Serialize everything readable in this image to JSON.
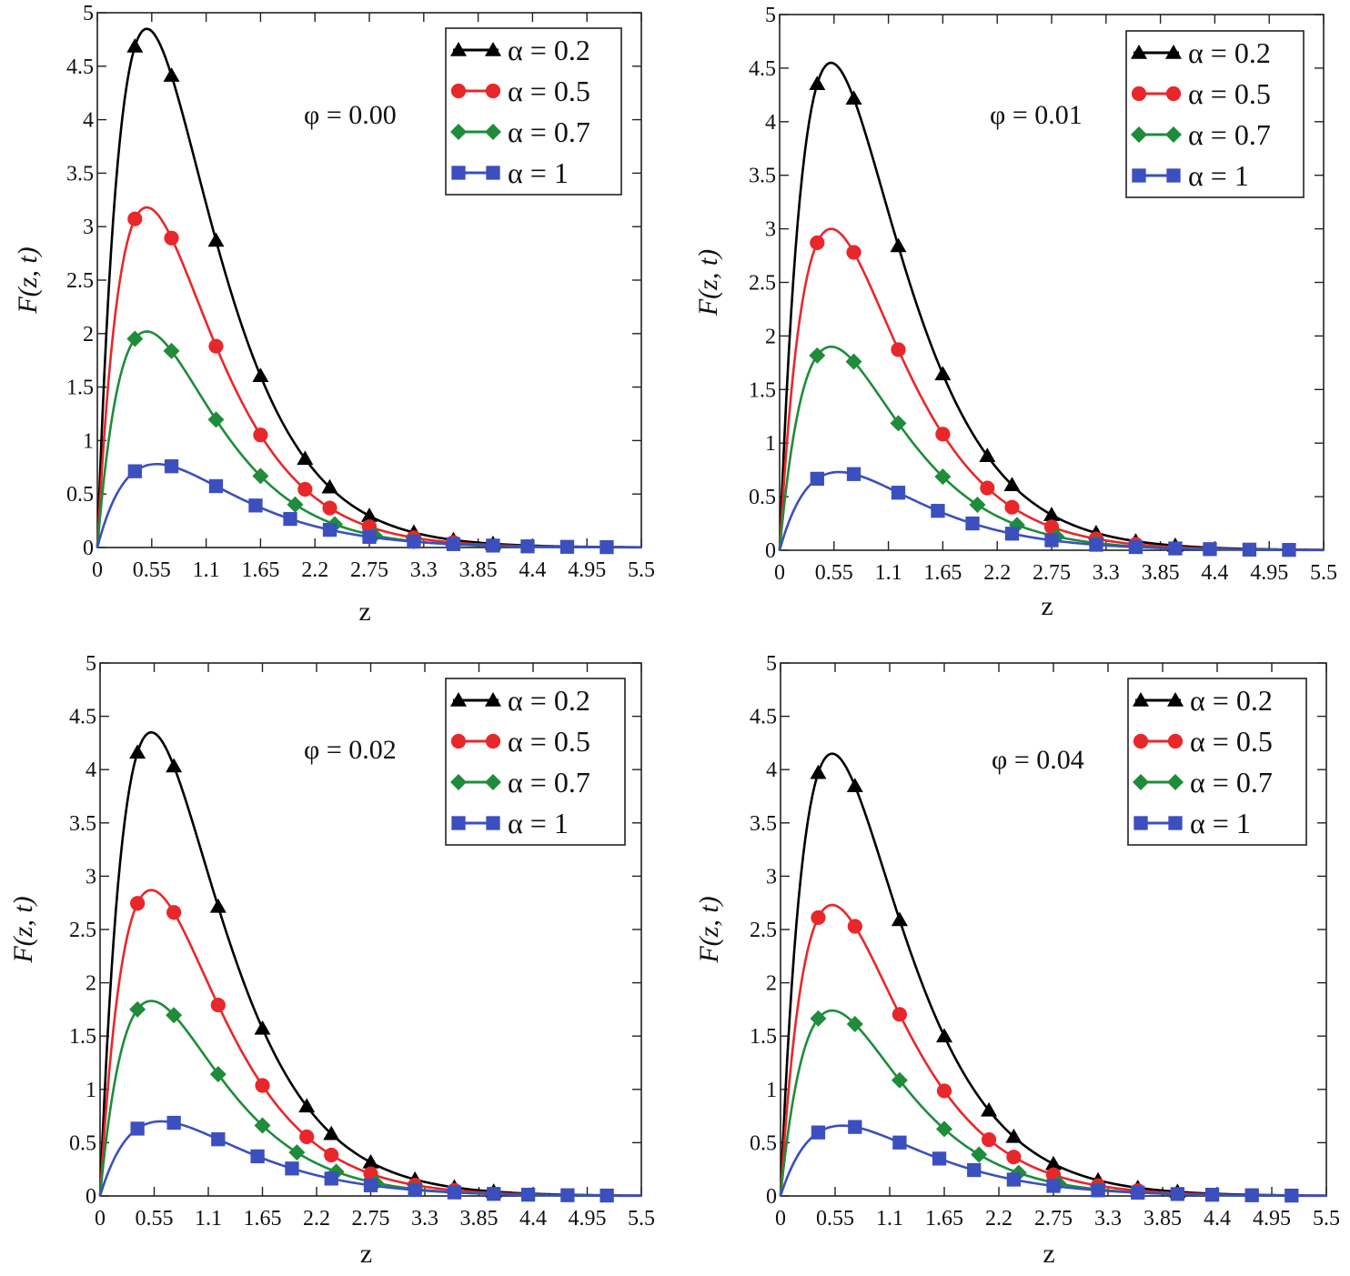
{
  "chart_data": [
    {
      "type": "line",
      "annotation": "φ = 0.00",
      "xlabel": "z",
      "ylabel": "F(z, t)",
      "xlim": [
        0,
        5.5
      ],
      "ylim": [
        0,
        5
      ],
      "xticks": [
        "0",
        "0.55",
        "1.1",
        "1.65",
        "2.2",
        "2.75",
        "3.3",
        "3.85",
        "4.4",
        "4.95",
        "5.5"
      ],
      "yticks": [
        "0",
        "0.5",
        "1",
        "1.5",
        "2",
        "2.5",
        "3",
        "3.5",
        "4",
        "4.5",
        "5"
      ],
      "legend_position": "top-right",
      "series": [
        {
          "name": "α = 0.2",
          "color": "#000000",
          "marker": "triangle",
          "peak_x": 0.5,
          "peak": 4.85,
          "markers_x": [
            0.38,
            0.75,
            1.2,
            1.65,
            2.1,
            2.35,
            2.75,
            3.2,
            3.6,
            4.0
          ]
        },
        {
          "name": "α = 0.5",
          "color": "#e8272b",
          "marker": "circle",
          "peak_x": 0.5,
          "peak": 3.18,
          "markers_x": [
            0.38,
            0.75,
            1.2,
            1.65,
            2.1,
            2.35,
            2.75,
            3.2,
            3.6
          ]
        },
        {
          "name": "α = 0.7",
          "color": "#1e8c3a",
          "marker": "diamond",
          "peak_x": 0.5,
          "peak": 2.02,
          "markers_x": [
            0.38,
            0.75,
            1.2,
            1.65,
            2.0,
            2.4,
            2.8,
            3.2
          ]
        },
        {
          "name": "α = 1",
          "color": "#3b4fbf",
          "marker": "square",
          "peak_x": 0.6,
          "peak": 0.78,
          "markers_x": [
            0.38,
            0.75,
            1.2,
            1.6,
            1.95,
            2.35,
            2.75,
            3.2,
            3.6,
            4.0,
            4.35,
            4.75,
            5.15
          ]
        }
      ]
    },
    {
      "type": "line",
      "annotation": "φ = 0.01",
      "xlabel": "z",
      "ylabel": "F(z, t)",
      "xlim": [
        0,
        5.5
      ],
      "ylim": [
        0,
        5
      ],
      "xticks": [
        "0",
        "0.55",
        "1.1",
        "1.65",
        "2.2",
        "2.75",
        "3.3",
        "3.85",
        "4.4",
        "4.95",
        "5.5"
      ],
      "yticks": [
        "0",
        "0.5",
        "1",
        "1.5",
        "2",
        "2.5",
        "3",
        "3.5",
        "4",
        "4.5",
        "5"
      ],
      "legend_position": "top-right",
      "series": [
        {
          "name": "α = 0.2",
          "color": "#000000",
          "marker": "triangle",
          "peak_x": 0.52,
          "peak": 4.55,
          "markers_x": [
            0.38,
            0.75,
            1.2,
            1.65,
            2.1,
            2.35,
            2.75,
            3.2,
            3.6,
            4.0
          ]
        },
        {
          "name": "α = 0.5",
          "color": "#e8272b",
          "marker": "circle",
          "peak_x": 0.52,
          "peak": 3.0,
          "markers_x": [
            0.38,
            0.75,
            1.2,
            1.65,
            2.1,
            2.35,
            2.75,
            3.2,
            3.6
          ]
        },
        {
          "name": "α = 0.7",
          "color": "#1e8c3a",
          "marker": "diamond",
          "peak_x": 0.52,
          "peak": 1.9,
          "markers_x": [
            0.38,
            0.75,
            1.2,
            1.65,
            2.0,
            2.4,
            2.8,
            3.2
          ]
        },
        {
          "name": "α = 1",
          "color": "#3b4fbf",
          "marker": "square",
          "peak_x": 0.6,
          "peak": 0.73,
          "markers_x": [
            0.38,
            0.75,
            1.2,
            1.6,
            1.95,
            2.35,
            2.75,
            3.2,
            3.6,
            4.0,
            4.35,
            4.75,
            5.15
          ]
        }
      ]
    },
    {
      "type": "line",
      "annotation": "φ = 0.02",
      "xlabel": "z",
      "ylabel": "F(z, t)",
      "xlim": [
        0,
        5.5
      ],
      "ylim": [
        0,
        5
      ],
      "xticks": [
        "0",
        "0.55",
        "1.1",
        "1.65",
        "2.2",
        "2.75",
        "3.3",
        "3.85",
        "4.4",
        "4.95",
        "5.5"
      ],
      "yticks": [
        "0",
        "0.5",
        "1",
        "1.5",
        "2",
        "2.5",
        "3",
        "3.5",
        "4",
        "4.5",
        "5"
      ],
      "legend_position": "top-right",
      "series": [
        {
          "name": "α = 0.2",
          "color": "#000000",
          "marker": "triangle",
          "peak_x": 0.52,
          "peak": 4.35,
          "markers_x": [
            0.38,
            0.75,
            1.2,
            1.65,
            2.1,
            2.35,
            2.75,
            3.2,
            3.6,
            4.0
          ]
        },
        {
          "name": "α = 0.5",
          "color": "#e8272b",
          "marker": "circle",
          "peak_x": 0.52,
          "peak": 2.87,
          "markers_x": [
            0.38,
            0.75,
            1.2,
            1.65,
            2.1,
            2.35,
            2.75,
            3.2,
            3.6
          ]
        },
        {
          "name": "α = 0.7",
          "color": "#1e8c3a",
          "marker": "diamond",
          "peak_x": 0.52,
          "peak": 1.83,
          "markers_x": [
            0.38,
            0.75,
            1.2,
            1.65,
            2.0,
            2.4,
            2.8,
            3.2
          ]
        },
        {
          "name": "α = 1",
          "color": "#3b4fbf",
          "marker": "square",
          "peak_x": 0.62,
          "peak": 0.7,
          "markers_x": [
            0.38,
            0.75,
            1.2,
            1.6,
            1.95,
            2.35,
            2.75,
            3.2,
            3.6,
            4.0,
            4.35,
            4.75,
            5.15
          ]
        }
      ]
    },
    {
      "type": "line",
      "annotation": "φ = 0.04",
      "xlabel": "z",
      "ylabel": "F(z, t)",
      "xlim": [
        0,
        5.5
      ],
      "ylim": [
        0,
        5
      ],
      "xticks": [
        "0",
        "0.55",
        "1.1",
        "1.65",
        "2.2",
        "2.75",
        "3.3",
        "3.85",
        "4.4",
        "4.95",
        "5.5"
      ],
      "yticks": [
        "0",
        "0.5",
        "1",
        "1.5",
        "2",
        "2.5",
        "3",
        "3.5",
        "4",
        "4.5",
        "5"
      ],
      "legend_position": "top-right",
      "series": [
        {
          "name": "α = 0.2",
          "color": "#000000",
          "marker": "triangle",
          "peak_x": 0.52,
          "peak": 4.15,
          "markers_x": [
            0.38,
            0.75,
            1.2,
            1.65,
            2.1,
            2.35,
            2.75,
            3.2,
            3.6,
            4.0
          ]
        },
        {
          "name": "α = 0.5",
          "color": "#e8272b",
          "marker": "circle",
          "peak_x": 0.52,
          "peak": 2.73,
          "markers_x": [
            0.38,
            0.75,
            1.2,
            1.65,
            2.1,
            2.35,
            2.75,
            3.2,
            3.6
          ]
        },
        {
          "name": "α = 0.7",
          "color": "#1e8c3a",
          "marker": "diamond",
          "peak_x": 0.52,
          "peak": 1.74,
          "markers_x": [
            0.38,
            0.75,
            1.2,
            1.65,
            2.0,
            2.4,
            2.8,
            3.2
          ]
        },
        {
          "name": "α = 1",
          "color": "#3b4fbf",
          "marker": "square",
          "peak_x": 0.62,
          "peak": 0.66,
          "markers_x": [
            0.38,
            0.75,
            1.2,
            1.6,
            1.95,
            2.35,
            2.75,
            3.2,
            3.6,
            4.0,
            4.35,
            4.75,
            5.15
          ]
        }
      ]
    }
  ]
}
